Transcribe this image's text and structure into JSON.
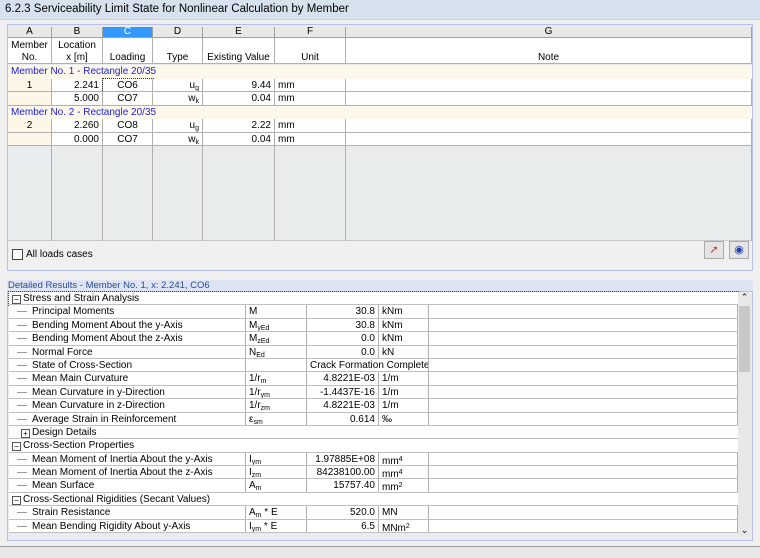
{
  "title": "6.2.3 Serviceability Limit State for Nonlinear Calculation by Member",
  "columns": {
    "letters": [
      "A",
      "B",
      "C",
      "D",
      "E",
      "F",
      "G"
    ],
    "labels1": [
      "Member",
      "Location",
      "",
      "",
      "",
      "",
      ""
    ],
    "labels2": [
      "No.",
      "x [m]",
      "Loading",
      "Type",
      "Existing Value",
      "Unit",
      "Note"
    ]
  },
  "groups": [
    {
      "title": "Member No. 1  -  Rectangle 20/35",
      "rows": [
        {
          "member": "1",
          "x": "2.241",
          "loading": "CO6",
          "type": "u",
          "type_sub": "g",
          "value": "9.44",
          "unit": "mm"
        },
        {
          "member": "",
          "x": "5.000",
          "loading": "CO7",
          "type": "w",
          "type_sub": "k",
          "value": "0.04",
          "unit": "mm"
        }
      ]
    },
    {
      "title": "Member No. 2  -  Rectangle 20/35",
      "rows": [
        {
          "member": "2",
          "x": "2.260",
          "loading": "CO8",
          "type": "u",
          "type_sub": "g",
          "value": "2.22",
          "unit": "mm"
        },
        {
          "member": "",
          "x": "0.000",
          "loading": "CO7",
          "type": "w",
          "type_sub": "k",
          "value": "0.04",
          "unit": "mm"
        }
      ]
    }
  ],
  "all_loads_label": "All loads cases",
  "detail_title": "Detailed Results  -  Member No. 1,   x: 2.241, CO6",
  "detail": [
    {
      "kind": "section",
      "label": "Stress and Strain Analysis",
      "expanded": true
    },
    {
      "kind": "item",
      "label": "Principal Moments",
      "sym": "M",
      "sub": "",
      "value": "30.8",
      "unit": "kNm"
    },
    {
      "kind": "item",
      "label": "Bending Moment About the y-Axis",
      "sym": "M",
      "sub": "yEd",
      "value": "30.8",
      "unit": "kNm"
    },
    {
      "kind": "item",
      "label": "Bending Moment About the z-Axis",
      "sym": "M",
      "sub": "zEd",
      "value": "0.0",
      "unit": "kNm"
    },
    {
      "kind": "item",
      "label": "Normal Force",
      "sym": "N",
      "sub": "Ed",
      "value": "0.0",
      "unit": "kN"
    },
    {
      "kind": "span",
      "label": "State of Cross-Section",
      "value": "Crack Formation Completed"
    },
    {
      "kind": "item",
      "label": "Mean Main Curvature",
      "sym": "1/r",
      "sub": "m",
      "value": "4.8221E-03",
      "unit": "1/m"
    },
    {
      "kind": "item",
      "label": "Mean Curvature in y-Direction",
      "sym": "1/r",
      "sub": "ym",
      "value": "-1.4437E-16",
      "unit": "1/m"
    },
    {
      "kind": "item",
      "label": "Mean Curvature in z-Direction",
      "sym": "1/r",
      "sub": "zm",
      "value": "4.8221E-03",
      "unit": "1/m"
    },
    {
      "kind": "item",
      "label": "Average Strain in Reinforcement",
      "sym": "ε",
      "sub": "sm",
      "value": "0.614",
      "unit": "‰"
    },
    {
      "kind": "subsection",
      "label": "Design Details",
      "expanded": false
    },
    {
      "kind": "section",
      "label": "Cross-Section Properties",
      "expanded": true
    },
    {
      "kind": "item",
      "label": "Mean Moment of Inertia About the y-Axis",
      "sym": "I",
      "sub": "ym",
      "value": "1.97885E+08",
      "unit": "mm",
      "unit_sup": "4"
    },
    {
      "kind": "item",
      "label": "Mean Moment of Inertia About the z-Axis",
      "sym": "I",
      "sub": "zm",
      "value": "84238100.00",
      "unit": "mm",
      "unit_sup": "4"
    },
    {
      "kind": "item",
      "label": "Mean Surface",
      "sym": "A",
      "sub": "m",
      "value": "15757.40",
      "unit": "mm",
      "unit_sup": "2"
    },
    {
      "kind": "section",
      "label": "Cross-Sectional Rigidities (Secant Values)",
      "expanded": true
    },
    {
      "kind": "item",
      "label": "Strain Resistance",
      "sym": "A",
      "sub": "m",
      "sym_post": " * E",
      "value": "520.0",
      "unit": "MN"
    },
    {
      "kind": "item",
      "label": "Mean Bending Rigidity About y-Axis",
      "sym": "I",
      "sub": "ym",
      "sym_post": " * E",
      "value": "6.5",
      "unit": "MNm",
      "unit_sup": "2"
    }
  ],
  "icons": {
    "pick": "pick-cursor-icon",
    "view": "eye-icon"
  }
}
